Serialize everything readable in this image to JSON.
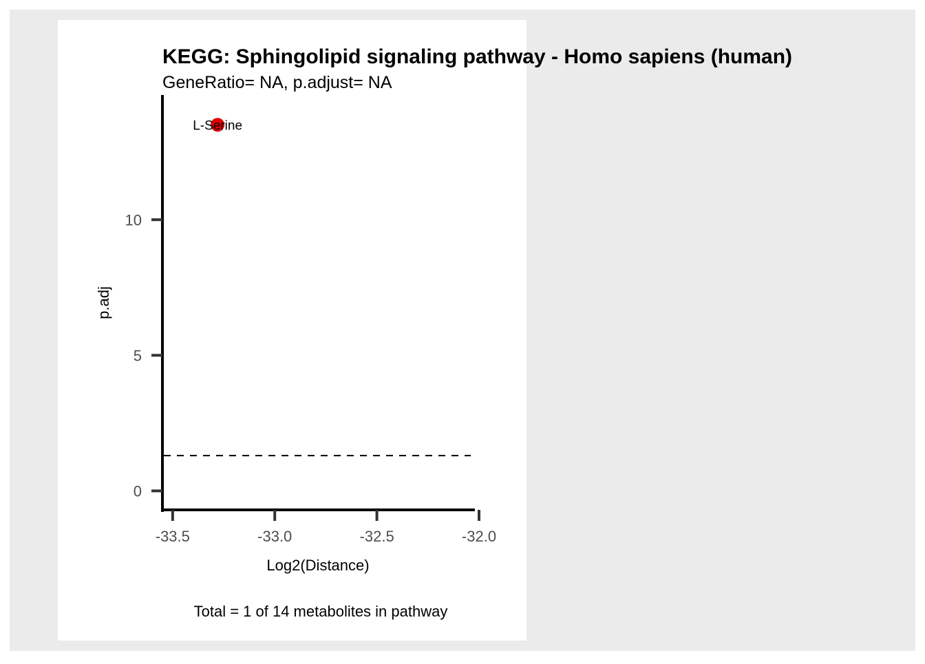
{
  "colors": {
    "outer_background": "#ebebeb",
    "panel_background": "#ffffff",
    "point": "#e00000",
    "axis": "#000000",
    "tick_label": "#4d4d4d",
    "text": "#000000"
  },
  "chart_data": {
    "type": "scatter",
    "title": "KEGG: Sphingolipid signaling pathway - Homo sapiens (human)",
    "subtitle": "GeneRatio= NA, p.adjust= NA",
    "xlabel": "Log2(Distance)",
    "ylabel": "p.adj",
    "caption": "Total = 1 of 14 metabolites in pathway",
    "xlim": [
      -33.55,
      -32.0
    ],
    "ylim": [
      -0.7,
      14.6
    ],
    "x_ticks": [
      -33.5,
      -33.0,
      -32.5,
      -32.0
    ],
    "x_tick_labels": [
      "-33.5",
      "-33.0",
      "-32.5",
      "-32.0"
    ],
    "y_ticks": [
      0,
      5,
      10
    ],
    "y_tick_labels": [
      "0",
      "5",
      "10"
    ],
    "threshold_line": {
      "y": 1.3,
      "style": "dashed"
    },
    "points": [
      {
        "x": -33.28,
        "y": 13.5,
        "label": "L-Serine"
      }
    ],
    "grid": false,
    "legend": "none"
  }
}
